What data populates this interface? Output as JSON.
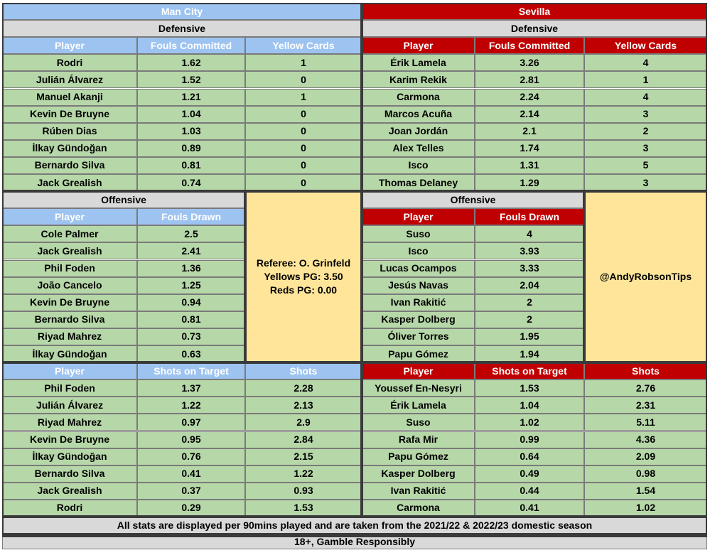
{
  "teams": {
    "home": {
      "name": "Man City",
      "color": "#9dc3f0"
    },
    "away": {
      "name": "Sevilla",
      "color": "#c00000"
    }
  },
  "sections": {
    "defensive": "Defensive",
    "offensive": "Offensive"
  },
  "columns": {
    "player": "Player",
    "fouls_committed": "Fouls Committed",
    "yellow_cards": "Yellow Cards",
    "fouls_drawn": "Fouls Drawn",
    "shots_on_target": "Shots on Target",
    "shots": "Shots"
  },
  "home": {
    "defensive": [
      [
        "Rodri",
        "1.62",
        "1"
      ],
      [
        "Julián Álvarez",
        "1.52",
        "0"
      ],
      [
        "Manuel Akanji",
        "1.21",
        "1"
      ],
      [
        "Kevin De Bruyne",
        "1.04",
        "0"
      ],
      [
        "Rúben Dias",
        "1.03",
        "0"
      ],
      [
        "İlkay Gündoğan",
        "0.89",
        "0"
      ],
      [
        "Bernardo Silva",
        "0.81",
        "0"
      ],
      [
        "Jack Grealish",
        "0.74",
        "0"
      ]
    ],
    "offensive": [
      [
        "Cole Palmer",
        "2.5"
      ],
      [
        "Jack Grealish",
        "2.41"
      ],
      [
        "Phil Foden",
        "1.36"
      ],
      [
        "João Cancelo",
        "1.25"
      ],
      [
        "Kevin De Bruyne",
        "0.94"
      ],
      [
        "Bernardo Silva",
        "0.81"
      ],
      [
        "Riyad Mahrez",
        "0.73"
      ],
      [
        "İlkay Gündoğan",
        "0.63"
      ]
    ],
    "shots": [
      [
        "Phil Foden",
        "1.37",
        "2.28"
      ],
      [
        "Julián Álvarez",
        "1.22",
        "2.13"
      ],
      [
        "Riyad Mahrez",
        "0.97",
        "2.9"
      ],
      [
        "Kevin De Bruyne",
        "0.95",
        "2.84"
      ],
      [
        "İlkay Gündoğan",
        "0.76",
        "2.15"
      ],
      [
        "Bernardo Silva",
        "0.41",
        "1.22"
      ],
      [
        "Jack Grealish",
        "0.37",
        "0.93"
      ],
      [
        "Rodri",
        "0.29",
        "1.53"
      ]
    ]
  },
  "away": {
    "defensive": [
      [
        "Érik Lamela",
        "3.26",
        "4"
      ],
      [
        "Karim Rekik",
        "2.81",
        "1"
      ],
      [
        "Carmona",
        "2.24",
        "4"
      ],
      [
        "Marcos Acuña",
        "2.14",
        "3"
      ],
      [
        "Joan Jordán",
        "2.1",
        "2"
      ],
      [
        "Alex Telles",
        "1.74",
        "3"
      ],
      [
        "Isco",
        "1.31",
        "5"
      ],
      [
        "Thomas Delaney",
        "1.29",
        "3"
      ]
    ],
    "offensive": [
      [
        "Suso",
        "4"
      ],
      [
        "Isco",
        "3.93"
      ],
      [
        "Lucas Ocampos",
        "3.33"
      ],
      [
        "Jesús Navas",
        "2.04"
      ],
      [
        "Ivan Rakitić",
        "2"
      ],
      [
        "Kasper Dolberg",
        "2"
      ],
      [
        "Óliver Torres",
        "1.95"
      ],
      [
        "Papu Gómez",
        "1.94"
      ]
    ],
    "shots": [
      [
        "Youssef En-Nesyri",
        "1.53",
        "2.76"
      ],
      [
        "Érik Lamela",
        "1.04",
        "2.31"
      ],
      [
        "Suso",
        "1.02",
        "5.11"
      ],
      [
        "Rafa Mir",
        "0.99",
        "4.36"
      ],
      [
        "Papu Gómez",
        "0.64",
        "2.09"
      ],
      [
        "Kasper Dolberg",
        "0.49",
        "0.98"
      ],
      [
        "Ivan Rakitić",
        "0.44",
        "1.54"
      ],
      [
        "Carmona",
        "0.41",
        "1.02"
      ]
    ]
  },
  "referee": {
    "line1": "Referee: O. Grinfeld",
    "line2": "Yellows PG: 3.50",
    "line3": "Reds PG: 0.00"
  },
  "handle": "@AndyRobsonTips",
  "footer": {
    "note": "All stats are displayed per 90mins played and are taken from the 2021/22 & 2022/23 domestic season",
    "warning": "18+, Gamble Responsibly"
  }
}
